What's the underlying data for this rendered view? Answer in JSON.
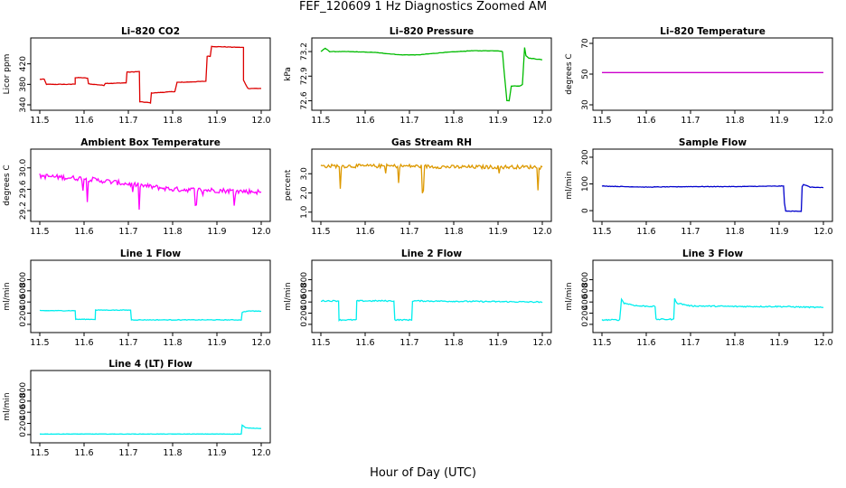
{
  "title": "FEF_120609  1 Hz Diagnostics Zoomed AM",
  "xlabel": "Hour of Day (UTC)",
  "chart_data": [
    {
      "type": "line",
      "title": "Li–820 CO2",
      "ylabel": "Licor ppm",
      "xlim": [
        11.5,
        12.0
      ],
      "ylim": [
        340,
        460
      ],
      "x_ticks": [
        "11.5",
        "11.6",
        "11.7",
        "11.8",
        "11.9",
        "12.0"
      ],
      "y_ticks": [
        "340",
        "380",
        "420"
      ],
      "color": "#dd0000",
      "noise": 0.4,
      "series": [
        {
          "x": [
            11.5,
            11.51,
            11.515,
            11.57,
            11.58,
            11.58,
            11.595,
            11.608,
            11.61,
            11.645,
            11.648,
            11.665,
            11.695,
            11.697,
            11.705,
            11.725,
            11.726,
            11.75,
            11.752,
            11.77,
            11.805,
            11.81,
            11.82,
            11.82,
            11.875,
            11.878,
            11.885,
            11.888,
            11.96,
            11.96,
            11.97,
            12.0
          ],
          "y": [
            390,
            390,
            380,
            380,
            381,
            393,
            393,
            392,
            381,
            378,
            382,
            382,
            383,
            404,
            404,
            405,
            346,
            344,
            363,
            364,
            366,
            384,
            384,
            384,
            386,
            435,
            435,
            454,
            452,
            388,
            372,
            372
          ]
        }
      ]
    },
    {
      "type": "line",
      "title": "Li–820 Pressure",
      "ylabel": "kPa",
      "xlim": [
        11.5,
        12.0
      ],
      "ylim": [
        72.55,
        73.3
      ],
      "x_ticks": [
        "11.5",
        "11.6",
        "11.7",
        "11.8",
        "11.9",
        "12.0"
      ],
      "y_ticks": [
        "72.6",
        "72.9",
        "73.2"
      ],
      "color": "#00bb00",
      "noise": 0.3,
      "series": [
        {
          "x": [
            11.5,
            11.51,
            11.52,
            11.56,
            11.62,
            11.68,
            11.72,
            11.78,
            11.84,
            11.9,
            11.91,
            11.913,
            11.92,
            11.925,
            11.93,
            11.95,
            11.955,
            11.96,
            11.963,
            11.97,
            12.0
          ],
          "y": [
            73.2,
            73.24,
            73.2,
            73.2,
            73.19,
            73.16,
            73.16,
            73.19,
            73.21,
            73.21,
            73.2,
            73.0,
            72.6,
            72.6,
            72.78,
            72.78,
            72.8,
            73.25,
            73.15,
            73.12,
            73.1
          ]
        }
      ]
    },
    {
      "type": "line",
      "title": "Li–820 Temperature",
      "ylabel": "degrees C",
      "xlim": [
        11.5,
        12.0
      ],
      "ylim": [
        30,
        70
      ],
      "x_ticks": [
        "11.5",
        "11.6",
        "11.7",
        "11.8",
        "11.9",
        "12.0"
      ],
      "y_ticks": [
        "30",
        "50",
        "70"
      ],
      "color": "#cc00cc",
      "noise": 0,
      "series": [
        {
          "x": [
            11.5,
            12.0
          ],
          "y": [
            51,
            51
          ]
        }
      ]
    },
    {
      "type": "line",
      "title": "Ambient Box Temperature",
      "ylabel": "degrees C",
      "xlim": [
        11.5,
        12.0
      ],
      "ylim": [
        29.1,
        30.25
      ],
      "x_ticks": [
        "11.5",
        "11.6",
        "11.7",
        "11.8",
        "11.9",
        "12.0"
      ],
      "y_ticks": [
        "29.2",
        "29.6",
        "30.0"
      ],
      "color": "#ff00ff",
      "noise": 4,
      "series": [
        {
          "x": [
            11.5,
            11.6,
            11.7,
            11.8,
            11.9,
            12.0
          ],
          "y": [
            29.85,
            29.8,
            29.7,
            29.6,
            29.58,
            29.55
          ]
        }
      ]
    },
    {
      "type": "line",
      "title": "Gas Stream RH",
      "ylabel": "percent",
      "xlim": [
        11.5,
        12.0
      ],
      "ylim": [
        0.8,
        4.0
      ],
      "x_ticks": [
        "11.5",
        "11.6",
        "11.7",
        "11.8",
        "11.9",
        "12.0"
      ],
      "y_ticks": [
        "1.0",
        "2.0",
        "3.0"
      ],
      "color": "#dd9900",
      "noise": 3,
      "series": [
        {
          "x": [
            11.5,
            11.6,
            11.7,
            11.8,
            11.9,
            12.0
          ],
          "y": [
            3.4,
            3.4,
            3.4,
            3.35,
            3.35,
            3.35
          ]
        }
      ]
    },
    {
      "type": "line",
      "title": "Sample Flow",
      "ylabel": "ml/min",
      "xlim": [
        11.5,
        12.0
      ],
      "ylim": [
        -20,
        210
      ],
      "x_ticks": [
        "11.5",
        "11.6",
        "11.7",
        "11.8",
        "11.9",
        "12.0"
      ],
      "y_ticks": [
        "0",
        "100",
        "200"
      ],
      "color": "#0000cc",
      "noise": 0.4,
      "series": [
        {
          "x": [
            11.5,
            11.55,
            11.6,
            11.7,
            11.8,
            11.91,
            11.912,
            11.915,
            11.95,
            11.952,
            11.955,
            11.97,
            12.0
          ],
          "y": [
            92,
            90,
            88,
            90,
            90,
            92,
            30,
            -2,
            -2,
            90,
            98,
            88,
            86
          ]
        }
      ]
    },
    {
      "type": "line",
      "title": "Line 1 Flow",
      "ylabel": "ml/min",
      "xlim": [
        11.5,
        12.0
      ],
      "ylim": [
        -50,
        1050
      ],
      "x_ticks": [
        "11.5",
        "11.6",
        "11.7",
        "11.8",
        "11.9",
        "12.0"
      ],
      "y_ticks": [
        "0",
        "200",
        "400",
        "600",
        "800"
      ],
      "color": "#00eeee",
      "noise": 0.5,
      "series": [
        {
          "x": [
            11.5,
            11.58,
            11.581,
            11.625,
            11.626,
            11.705,
            11.707,
            11.955,
            11.957,
            11.97,
            12.0
          ],
          "y": [
            245,
            245,
            90,
            90,
            255,
            255,
            80,
            80,
            215,
            240,
            235
          ]
        }
      ]
    },
    {
      "type": "line",
      "title": "Line 2 Flow",
      "ylabel": "ml/min",
      "xlim": [
        11.5,
        12.0
      ],
      "ylim": [
        -50,
        1050
      ],
      "x_ticks": [
        "11.5",
        "11.6",
        "11.7",
        "11.8",
        "11.9",
        "12.0"
      ],
      "y_ticks": [
        "0",
        "200",
        "400",
        "600",
        "800"
      ],
      "color": "#00eeee",
      "noise": 1,
      "series": [
        {
          "x": [
            11.5,
            11.54,
            11.541,
            11.58,
            11.581,
            11.665,
            11.667,
            11.705,
            11.707,
            11.99,
            12.0
          ],
          "y": [
            420,
            420,
            80,
            80,
            420,
            420,
            80,
            80,
            420,
            400,
            390
          ]
        }
      ]
    },
    {
      "type": "line",
      "title": "Line 3 Flow",
      "ylabel": "ml/min",
      "xlim": [
        11.5,
        12.0
      ],
      "ylim": [
        -50,
        1050
      ],
      "x_ticks": [
        "11.5",
        "11.6",
        "11.7",
        "11.8",
        "11.9",
        "12.0"
      ],
      "y_ticks": [
        "0",
        "200",
        "400",
        "600",
        "800"
      ],
      "color": "#00eeee",
      "noise": 1,
      "series": [
        {
          "x": [
            11.5,
            11.54,
            11.544,
            11.55,
            11.58,
            11.62,
            11.622,
            11.662,
            11.664,
            11.67,
            11.7,
            11.8,
            11.9,
            12.0
          ],
          "y": [
            80,
            80,
            450,
            380,
            330,
            320,
            90,
            90,
            460,
            380,
            330,
            320,
            320,
            300
          ]
        }
      ]
    },
    {
      "type": "line",
      "title": "Line 4 (LT) Flow",
      "ylabel": "ml/min",
      "xlim": [
        11.5,
        12.0
      ],
      "ylim": [
        -50,
        1050
      ],
      "x_ticks": [
        "11.5",
        "11.6",
        "11.7",
        "11.8",
        "11.9",
        "12.0"
      ],
      "y_ticks": [
        "0",
        "200",
        "400",
        "600",
        "800"
      ],
      "color": "#00eeee",
      "noise": 0.3,
      "series": [
        {
          "x": [
            11.5,
            11.955,
            11.957,
            11.965,
            12.0
          ],
          "y": [
            10,
            10,
            170,
            120,
            110
          ]
        }
      ]
    }
  ]
}
